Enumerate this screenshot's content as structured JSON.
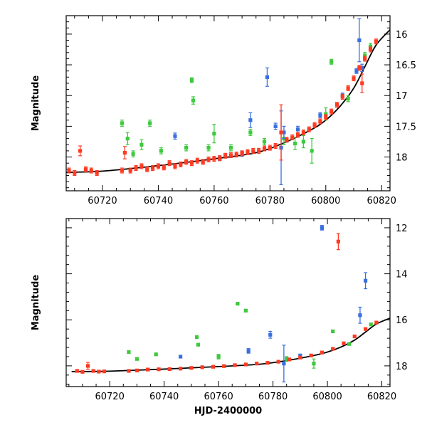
{
  "chart_data": [
    {
      "type": "scatter",
      "title": "",
      "xlabel": "",
      "ylabel": "Magnitude",
      "xlim": [
        60707,
        60823
      ],
      "ylim": [
        18.55,
        15.7
      ],
      "y_inverted": true,
      "grid": false,
      "legend": "none",
      "x_ticks": [
        60720,
        60740,
        60760,
        60780,
        60800,
        60820
      ],
      "x_tick_labels": [
        "60720",
        "60740",
        "60760",
        "60780",
        "60800",
        "60820"
      ],
      "y_ticks": [
        16,
        16.5,
        17,
        17.5,
        18
      ],
      "y_tick_labels": [
        "16",
        "16.5",
        "17",
        "17.5",
        "18"
      ],
      "model_curve": {
        "color": "#000000",
        "x": [
          60707,
          60720,
          60740,
          60760,
          60775,
          60785,
          60795,
          60800,
          60805,
          60810,
          60814,
          60818,
          60823
        ],
        "y": [
          18.25,
          18.23,
          18.14,
          18.03,
          17.93,
          17.77,
          17.55,
          17.4,
          17.18,
          16.88,
          16.53,
          16.18,
          15.93
        ]
      },
      "series": [
        {
          "color": "#ff3a22",
          "points": [
            {
              "x": 60708,
              "y": 18.22,
              "err": 0.04
            },
            {
              "x": 60710,
              "y": 18.26,
              "err": 0.04
            },
            {
              "x": 60712,
              "y": 17.9,
              "err": 0.08
            },
            {
              "x": 60714,
              "y": 18.2,
              "err": 0.04
            },
            {
              "x": 60716,
              "y": 18.22,
              "err": 0.04
            },
            {
              "x": 60718,
              "y": 18.26,
              "err": 0.04
            },
            {
              "x": 60727,
              "y": 18.22,
              "err": 0.04
            },
            {
              "x": 60728,
              "y": 17.93,
              "err": 0.1
            },
            {
              "x": 60730,
              "y": 18.22,
              "err": 0.04
            },
            {
              "x": 60732,
              "y": 18.18,
              "err": 0.04
            },
            {
              "x": 60734,
              "y": 18.15,
              "err": 0.04
            },
            {
              "x": 60736,
              "y": 18.2,
              "err": 0.04
            },
            {
              "x": 60738,
              "y": 18.18,
              "err": 0.04
            },
            {
              "x": 60740,
              "y": 18.15,
              "err": 0.04
            },
            {
              "x": 60742,
              "y": 18.17,
              "err": 0.04
            },
            {
              "x": 60744,
              "y": 18.1,
              "err": 0.04
            },
            {
              "x": 60746,
              "y": 18.15,
              "err": 0.04
            },
            {
              "x": 60748,
              "y": 18.12,
              "err": 0.04
            },
            {
              "x": 60750,
              "y": 18.08,
              "err": 0.04
            },
            {
              "x": 60752,
              "y": 18.1,
              "err": 0.04
            },
            {
              "x": 60754,
              "y": 18.06,
              "err": 0.04
            },
            {
              "x": 60756,
              "y": 18.08,
              "err": 0.04
            },
            {
              "x": 60758,
              "y": 18.04,
              "err": 0.04
            },
            {
              "x": 60760,
              "y": 18.03,
              "err": 0.04
            },
            {
              "x": 60762,
              "y": 18.02,
              "err": 0.04
            },
            {
              "x": 60764,
              "y": 17.98,
              "err": 0.04
            },
            {
              "x": 60766,
              "y": 17.97,
              "err": 0.04
            },
            {
              "x": 60768,
              "y": 17.96,
              "err": 0.04
            },
            {
              "x": 60770,
              "y": 17.94,
              "err": 0.04
            },
            {
              "x": 60772,
              "y": 17.92,
              "err": 0.04
            },
            {
              "x": 60774,
              "y": 17.9,
              "err": 0.04
            },
            {
              "x": 60776,
              "y": 17.9,
              "err": 0.04
            },
            {
              "x": 60778,
              "y": 17.86,
              "err": 0.04
            },
            {
              "x": 60780,
              "y": 17.85,
              "err": 0.04
            },
            {
              "x": 60782,
              "y": 17.82,
              "err": 0.04
            },
            {
              "x": 60784,
              "y": 17.6,
              "err": 0.45
            },
            {
              "x": 60786,
              "y": 17.72,
              "err": 0.04
            },
            {
              "x": 60788,
              "y": 17.68,
              "err": 0.04
            },
            {
              "x": 60790,
              "y": 17.64,
              "err": 0.04
            },
            {
              "x": 60792,
              "y": 17.6,
              "err": 0.04
            },
            {
              "x": 60794,
              "y": 17.55,
              "err": 0.04
            },
            {
              "x": 60796,
              "y": 17.48,
              "err": 0.04
            },
            {
              "x": 60798,
              "y": 17.42,
              "err": 0.04
            },
            {
              "x": 60800,
              "y": 17.35,
              "err": 0.04
            },
            {
              "x": 60802,
              "y": 17.26,
              "err": 0.04
            },
            {
              "x": 60804,
              "y": 17.15,
              "err": 0.04
            },
            {
              "x": 60806,
              "y": 17.02,
              "err": 0.04
            },
            {
              "x": 60808,
              "y": 16.88,
              "err": 0.04
            },
            {
              "x": 60810,
              "y": 16.72,
              "err": 0.04
            },
            {
              "x": 60812,
              "y": 16.55,
              "err": 0.04
            },
            {
              "x": 60813,
              "y": 16.8,
              "err": 0.15
            },
            {
              "x": 60814,
              "y": 16.4,
              "err": 0.04
            },
            {
              "x": 60816,
              "y": 16.25,
              "err": 0.04
            },
            {
              "x": 60818,
              "y": 16.12,
              "err": 0.04
            }
          ]
        },
        {
          "color": "#3a6fe0",
          "points": [
            {
              "x": 60746,
              "y": 17.66,
              "err": 0.05
            },
            {
              "x": 60762,
              "y": 18.02,
              "err": 0.04
            },
            {
              "x": 60770,
              "y": 17.95,
              "err": 0.04
            },
            {
              "x": 60773,
              "y": 17.4,
              "err": 0.12
            },
            {
              "x": 60779,
              "y": 16.7,
              "err": 0.15
            },
            {
              "x": 60782,
              "y": 17.5,
              "err": 0.05
            },
            {
              "x": 60784,
              "y": 17.85,
              "err": 0.6
            },
            {
              "x": 60785,
              "y": 17.6,
              "err": 0.1
            },
            {
              "x": 60790,
              "y": 17.55,
              "err": 0.05
            },
            {
              "x": 60798,
              "y": 17.32,
              "err": 0.04
            },
            {
              "x": 60806,
              "y": 17.0,
              "err": 0.04
            },
            {
              "x": 60811,
              "y": 16.6,
              "err": 0.04
            },
            {
              "x": 60812,
              "y": 16.1,
              "err": 0.35
            },
            {
              "x": 60813,
              "y": 16.55,
              "err": 0.06
            }
          ]
        },
        {
          "color": "#3ec93e",
          "points": [
            {
              "x": 60727,
              "y": 17.45,
              "err": 0.05
            },
            {
              "x": 60729,
              "y": 17.7,
              "err": 0.1
            },
            {
              "x": 60731,
              "y": 17.95,
              "err": 0.05
            },
            {
              "x": 60734,
              "y": 17.8,
              "err": 0.08
            },
            {
              "x": 60737,
              "y": 17.45,
              "err": 0.05
            },
            {
              "x": 60741,
              "y": 17.9,
              "err": 0.05
            },
            {
              "x": 60750,
              "y": 17.85,
              "err": 0.05
            },
            {
              "x": 60752,
              "y": 16.75,
              "err": 0.04
            },
            {
              "x": 60752.5,
              "y": 17.08,
              "err": 0.06
            },
            {
              "x": 60758,
              "y": 17.85,
              "err": 0.05
            },
            {
              "x": 60760,
              "y": 17.62,
              "err": 0.15
            },
            {
              "x": 60766,
              "y": 17.85,
              "err": 0.05
            },
            {
              "x": 60773,
              "y": 17.6,
              "err": 0.05
            },
            {
              "x": 60778,
              "y": 17.75,
              "err": 0.05
            },
            {
              "x": 60785,
              "y": 17.7,
              "err": 0.1
            },
            {
              "x": 60789,
              "y": 17.78,
              "err": 0.1
            },
            {
              "x": 60792,
              "y": 17.75,
              "err": 0.1
            },
            {
              "x": 60795,
              "y": 17.9,
              "err": 0.2
            },
            {
              "x": 60800,
              "y": 17.3,
              "err": 0.1
            },
            {
              "x": 60802,
              "y": 16.45,
              "err": 0.04
            },
            {
              "x": 60808,
              "y": 17.05,
              "err": 0.05
            },
            {
              "x": 60814,
              "y": 16.35,
              "err": 0.05
            },
            {
              "x": 60816,
              "y": 16.2,
              "err": 0.05
            }
          ]
        }
      ]
    },
    {
      "type": "scatter",
      "title": "",
      "xlabel": "HJD-2400000",
      "ylabel": "Magnitude",
      "xlim": [
        60704,
        60823
      ],
      "ylim": [
        18.9,
        11.6
      ],
      "y_inverted": true,
      "grid": false,
      "legend": "none",
      "x_ticks": [
        60720,
        60740,
        60760,
        60780,
        60800,
        60820
      ],
      "x_tick_labels": [
        "60720",
        "60740",
        "60760",
        "60780",
        "60800",
        "60820"
      ],
      "y_ticks": [
        12,
        14,
        16,
        18
      ],
      "y_tick_labels": [
        "12",
        "14",
        "16",
        "18"
      ],
      "model_curve": {
        "color": "#000000",
        "x": [
          60706,
          60720,
          60740,
          60760,
          60775,
          60785,
          60795,
          60800,
          60805,
          60810,
          60814,
          60818,
          60823
        ],
        "y": [
          18.25,
          18.23,
          18.14,
          18.03,
          17.93,
          17.77,
          17.55,
          17.4,
          17.18,
          16.88,
          16.53,
          16.18,
          15.93
        ]
      },
      "series": [
        {
          "color": "#ff3a22",
          "points": [
            {
              "x": 60708,
              "y": 18.22,
              "err": 0.05
            },
            {
              "x": 60710,
              "y": 18.26,
              "err": 0.05
            },
            {
              "x": 60712,
              "y": 18.0,
              "err": 0.15
            },
            {
              "x": 60714,
              "y": 18.22,
              "err": 0.05
            },
            {
              "x": 60716,
              "y": 18.25,
              "err": 0.05
            },
            {
              "x": 60718,
              "y": 18.24,
              "err": 0.05
            },
            {
              "x": 60727,
              "y": 18.22,
              "err": 0.05
            },
            {
              "x": 60730,
              "y": 18.2,
              "err": 0.05
            },
            {
              "x": 60734,
              "y": 18.16,
              "err": 0.05
            },
            {
              "x": 60738,
              "y": 18.15,
              "err": 0.05
            },
            {
              "x": 60742,
              "y": 18.14,
              "err": 0.05
            },
            {
              "x": 60746,
              "y": 18.12,
              "err": 0.05
            },
            {
              "x": 60750,
              "y": 18.09,
              "err": 0.05
            },
            {
              "x": 60754,
              "y": 18.06,
              "err": 0.05
            },
            {
              "x": 60758,
              "y": 18.04,
              "err": 0.05
            },
            {
              "x": 60762,
              "y": 18.01,
              "err": 0.05
            },
            {
              "x": 60766,
              "y": 17.97,
              "err": 0.05
            },
            {
              "x": 60770,
              "y": 17.94,
              "err": 0.05
            },
            {
              "x": 60774,
              "y": 17.9,
              "err": 0.05
            },
            {
              "x": 60778,
              "y": 17.87,
              "err": 0.05
            },
            {
              "x": 60782,
              "y": 17.82,
              "err": 0.05
            },
            {
              "x": 60786,
              "y": 17.72,
              "err": 0.05
            },
            {
              "x": 60790,
              "y": 17.64,
              "err": 0.05
            },
            {
              "x": 60794,
              "y": 17.55,
              "err": 0.05
            },
            {
              "x": 60798,
              "y": 17.42,
              "err": 0.05
            },
            {
              "x": 60802,
              "y": 17.26,
              "err": 0.05
            },
            {
              "x": 60804,
              "y": 12.6,
              "err": 0.35
            },
            {
              "x": 60806,
              "y": 17.02,
              "err": 0.05
            },
            {
              "x": 60810,
              "y": 16.72,
              "err": 0.05
            },
            {
              "x": 60814,
              "y": 16.4,
              "err": 0.05
            },
            {
              "x": 60818,
              "y": 16.12,
              "err": 0.05
            }
          ]
        },
        {
          "color": "#3a6fe0",
          "points": [
            {
              "x": 60746,
              "y": 17.6,
              "err": 0.05
            },
            {
              "x": 60771,
              "y": 17.35,
              "err": 0.1
            },
            {
              "x": 60779,
              "y": 16.65,
              "err": 0.15
            },
            {
              "x": 60784,
              "y": 17.9,
              "err": 0.8
            },
            {
              "x": 60790,
              "y": 17.55,
              "err": 0.05
            },
            {
              "x": 60798,
              "y": 12.0,
              "err": 0.1
            },
            {
              "x": 60812,
              "y": 15.8,
              "err": 0.35
            },
            {
              "x": 60814,
              "y": 14.3,
              "err": 0.35
            }
          ]
        },
        {
          "color": "#3ec93e",
          "points": [
            {
              "x": 60727,
              "y": 17.4,
              "err": 0.05
            },
            {
              "x": 60730,
              "y": 17.7,
              "err": 0.05
            },
            {
              "x": 60737,
              "y": 17.5,
              "err": 0.05
            },
            {
              "x": 60752,
              "y": 16.75,
              "err": 0.05
            },
            {
              "x": 60752.5,
              "y": 17.08,
              "err": 0.05
            },
            {
              "x": 60760,
              "y": 17.6,
              "err": 0.1
            },
            {
              "x": 60767,
              "y": 15.3,
              "err": 0.05
            },
            {
              "x": 60770,
              "y": 15.6,
              "err": 0.05
            },
            {
              "x": 60785,
              "y": 17.7,
              "err": 0.1
            },
            {
              "x": 60795,
              "y": 17.9,
              "err": 0.2
            },
            {
              "x": 60802,
              "y": 16.5,
              "err": 0.05
            },
            {
              "x": 60808,
              "y": 17.05,
              "err": 0.05
            },
            {
              "x": 60816,
              "y": 16.2,
              "err": 0.05
            }
          ]
        }
      ]
    }
  ]
}
